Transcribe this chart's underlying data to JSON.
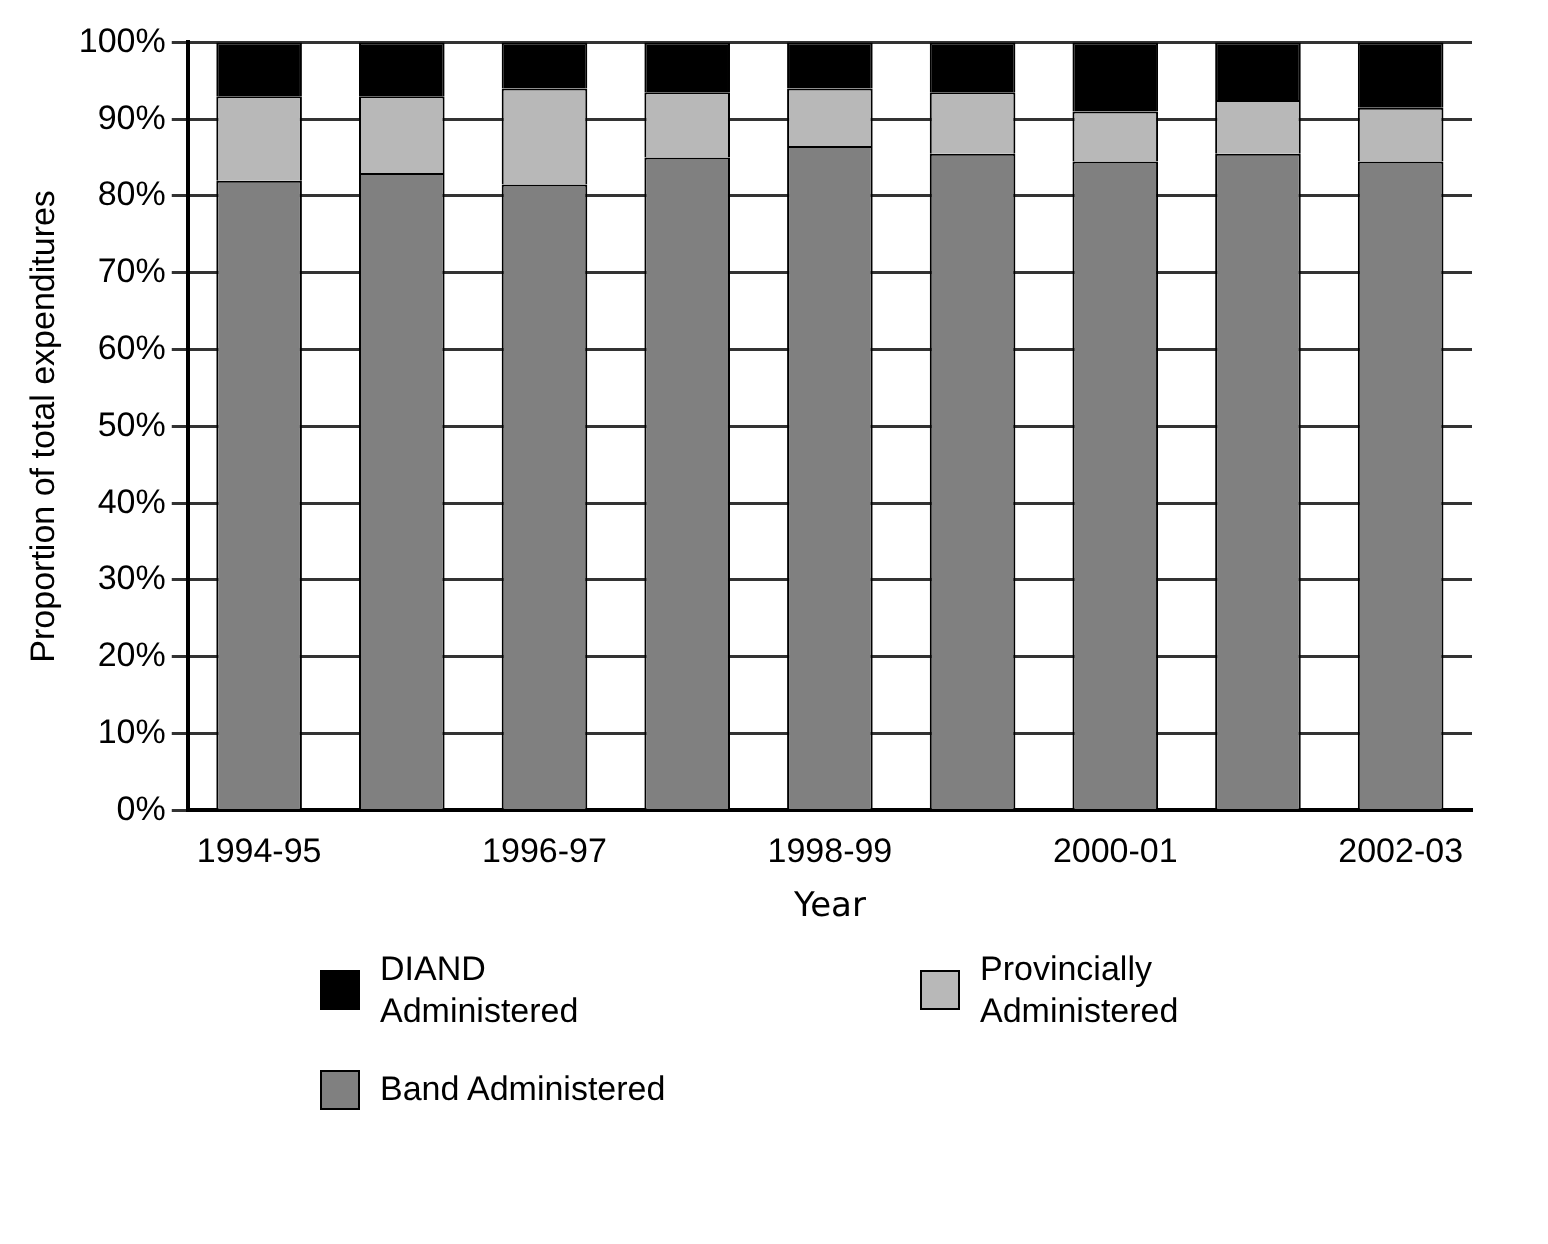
{
  "chart_data": {
    "type": "bar",
    "stacked": true,
    "xlabel": "Year",
    "ylabel": "Proportion of total expenditures",
    "categories": [
      "1994-95",
      null,
      "1996-97",
      null,
      "1998-99",
      null,
      "2000-01",
      null,
      "2002-03"
    ],
    "series": [
      {
        "name": "Band Administered",
        "color": "#808080",
        "values": [
          82,
          83,
          81.5,
          85,
          86.5,
          85.5,
          84.5,
          85.5,
          84.5
        ]
      },
      {
        "name": "Provincially Administered",
        "color": "#b8b8b8",
        "values": [
          11,
          10,
          12.5,
          8.5,
          7.5,
          8,
          6.5,
          7,
          7
        ]
      },
      {
        "name": "DIAND Administered",
        "color": "#000000",
        "values": [
          7,
          7,
          6,
          6.5,
          6,
          6.5,
          9,
          7.5,
          8.5
        ]
      }
    ],
    "ylim": [
      0,
      100
    ],
    "yticks": [
      {
        "value": 0,
        "label": "0%"
      },
      {
        "value": 10,
        "label": "10%"
      },
      {
        "value": 20,
        "label": "20%"
      },
      {
        "value": 30,
        "label": "30%"
      },
      {
        "value": 40,
        "label": "40%"
      },
      {
        "value": 50,
        "label": "50%"
      },
      {
        "value": 60,
        "label": "60%"
      },
      {
        "value": 70,
        "label": "70%"
      },
      {
        "value": 80,
        "label": "80%"
      },
      {
        "value": 90,
        "label": "90%"
      },
      {
        "value": 100,
        "label": "100%"
      }
    ],
    "grid": "y",
    "legend": "bottom"
  }
}
